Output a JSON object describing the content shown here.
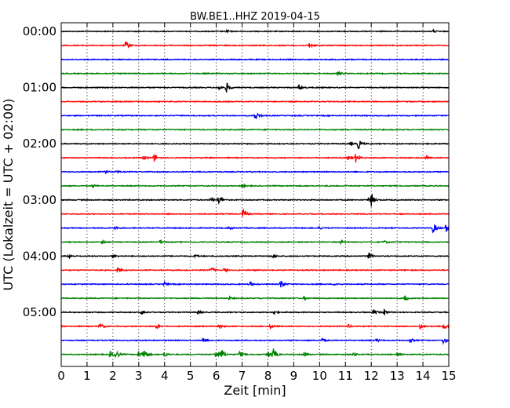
{
  "chart_data": {
    "type": "line",
    "title": "BW.BE1..HHZ 2019-04-15",
    "xlabel": "Zeit  [min]",
    "ylabel": "UTC (Lokalzeit = UTC + 02:00)",
    "xlim": [
      0,
      15
    ],
    "xticks": [
      "0",
      "1",
      "2",
      "3",
      "4",
      "5",
      "6",
      "7",
      "8",
      "9",
      "10",
      "11",
      "12",
      "13",
      "14",
      "15"
    ],
    "ytick_labels": [
      "00:00",
      "01:00",
      "02:00",
      "03:00",
      "04:00",
      "05:00"
    ],
    "grid": "vertical dotted lines at each minute",
    "colors": [
      "#000000",
      "#ff0000",
      "#0000ff",
      "#008000"
    ],
    "series": [
      {
        "start": "00:00",
        "events": [
          {
            "t": 6.4,
            "a": 0.2
          },
          {
            "t": 14.4,
            "a": 0.2
          }
        ]
      },
      {
        "start": "00:15",
        "events": [
          {
            "t": 2.5,
            "a": 0.7
          },
          {
            "t": 9.6,
            "a": 0.4
          }
        ]
      },
      {
        "start": "00:30",
        "events": []
      },
      {
        "start": "00:45",
        "events": [
          {
            "t": 10.7,
            "a": 0.3
          }
        ]
      },
      {
        "start": "01:00",
        "events": [
          {
            "t": 6.1,
            "a": 0.35
          },
          {
            "t": 6.4,
            "a": 0.8
          },
          {
            "t": 9.2,
            "a": 0.5
          }
        ]
      },
      {
        "start": "01:15",
        "events": []
      },
      {
        "start": "01:30",
        "events": [
          {
            "t": 7.5,
            "a": 0.9
          }
        ]
      },
      {
        "start": "01:45",
        "events": []
      },
      {
        "start": "02:00",
        "events": [
          {
            "t": 11.2,
            "a": 0.3
          },
          {
            "t": 11.5,
            "a": 0.8
          }
        ]
      },
      {
        "start": "02:15",
        "events": [
          {
            "t": 3.2,
            "a": 0.35
          },
          {
            "t": 3.6,
            "a": 0.6
          },
          {
            "t": 11.1,
            "a": 0.3
          },
          {
            "t": 11.4,
            "a": 0.7
          },
          {
            "t": 14.1,
            "a": 0.2
          }
        ]
      },
      {
        "start": "02:30",
        "events": [
          {
            "t": 1.7,
            "a": 0.3
          },
          {
            "t": 2.1,
            "a": 0.25
          }
        ]
      },
      {
        "start": "02:45",
        "events": [
          {
            "t": 1.2,
            "a": 0.25
          },
          {
            "t": 7.0,
            "a": 0.2
          }
        ]
      },
      {
        "start": "03:00",
        "events": [
          {
            "t": 5.8,
            "a": 0.3
          },
          {
            "t": 6.1,
            "a": 0.85
          },
          {
            "t": 11.9,
            "a": 0.35
          },
          {
            "t": 12.0,
            "a": 0.9
          }
        ]
      },
      {
        "start": "03:15",
        "events": [
          {
            "t": 7.05,
            "a": 0.9
          }
        ]
      },
      {
        "start": "03:30",
        "events": [
          {
            "t": 2.1,
            "a": 0.25
          },
          {
            "t": 6.5,
            "a": 0.25
          },
          {
            "t": 10.0,
            "a": 0.2
          },
          {
            "t": 14.4,
            "a": 1.0
          },
          {
            "t": 14.9,
            "a": 0.7
          }
        ]
      },
      {
        "start": "03:45",
        "events": [
          {
            "t": 1.6,
            "a": 0.3
          },
          {
            "t": 3.8,
            "a": 0.3
          },
          {
            "t": 10.8,
            "a": 0.3
          },
          {
            "t": 12.5,
            "a": 0.25
          }
        ]
      },
      {
        "start": "04:00",
        "events": [
          {
            "t": 0.3,
            "a": 0.3
          },
          {
            "t": 2.0,
            "a": 0.3
          },
          {
            "t": 5.2,
            "a": 0.25
          },
          {
            "t": 8.2,
            "a": 0.35
          },
          {
            "t": 11.9,
            "a": 0.6
          }
        ]
      },
      {
        "start": "04:15",
        "events": [
          {
            "t": 2.2,
            "a": 0.55
          },
          {
            "t": 5.8,
            "a": 0.5
          },
          {
            "t": 6.3,
            "a": 0.3
          }
        ]
      },
      {
        "start": "04:30",
        "events": [
          {
            "t": 4.0,
            "a": 0.3
          },
          {
            "t": 7.3,
            "a": 0.35
          },
          {
            "t": 8.5,
            "a": 0.8
          },
          {
            "t": 10.6,
            "a": 0.25
          }
        ]
      },
      {
        "start": "04:45",
        "events": [
          {
            "t": 6.5,
            "a": 0.25
          },
          {
            "t": 9.4,
            "a": 0.25
          },
          {
            "t": 13.3,
            "a": 0.6
          }
        ]
      },
      {
        "start": "05:00",
        "events": [
          {
            "t": 3.1,
            "a": 0.4
          },
          {
            "t": 5.3,
            "a": 0.3
          },
          {
            "t": 8.2,
            "a": 0.3
          },
          {
            "t": 12.1,
            "a": 0.4
          },
          {
            "t": 12.5,
            "a": 0.5
          }
        ]
      },
      {
        "start": "05:15",
        "events": [
          {
            "t": 1.5,
            "a": 0.55
          },
          {
            "t": 3.7,
            "a": 0.4
          },
          {
            "t": 6.1,
            "a": 0.35
          },
          {
            "t": 8.1,
            "a": 0.35
          },
          {
            "t": 11.1,
            "a": 0.3
          },
          {
            "t": 13.9,
            "a": 0.4
          },
          {
            "t": 14.8,
            "a": 0.5
          }
        ]
      },
      {
        "start": "05:30",
        "events": [
          {
            "t": 5.5,
            "a": 0.55
          },
          {
            "t": 10.1,
            "a": 0.3
          },
          {
            "t": 12.2,
            "a": 0.3
          },
          {
            "t": 13.5,
            "a": 0.35
          },
          {
            "t": 14.8,
            "a": 0.7
          }
        ]
      },
      {
        "start": "05:45",
        "events": [
          {
            "t": 1.9,
            "a": 0.5
          },
          {
            "t": 2.1,
            "a": 0.9
          },
          {
            "t": 3.0,
            "a": 0.6
          },
          {
            "t": 3.2,
            "a": 1.1
          },
          {
            "t": 4.0,
            "a": 0.4
          },
          {
            "t": 6.0,
            "a": 1.0
          },
          {
            "t": 6.2,
            "a": 0.9
          },
          {
            "t": 6.9,
            "a": 0.5
          },
          {
            "t": 8.0,
            "a": 0.6
          },
          {
            "t": 8.2,
            "a": 1.0
          },
          {
            "t": 9.4,
            "a": 0.4
          },
          {
            "t": 11.3,
            "a": 0.3
          },
          {
            "t": 13.0,
            "a": 0.3
          }
        ]
      }
    ]
  }
}
